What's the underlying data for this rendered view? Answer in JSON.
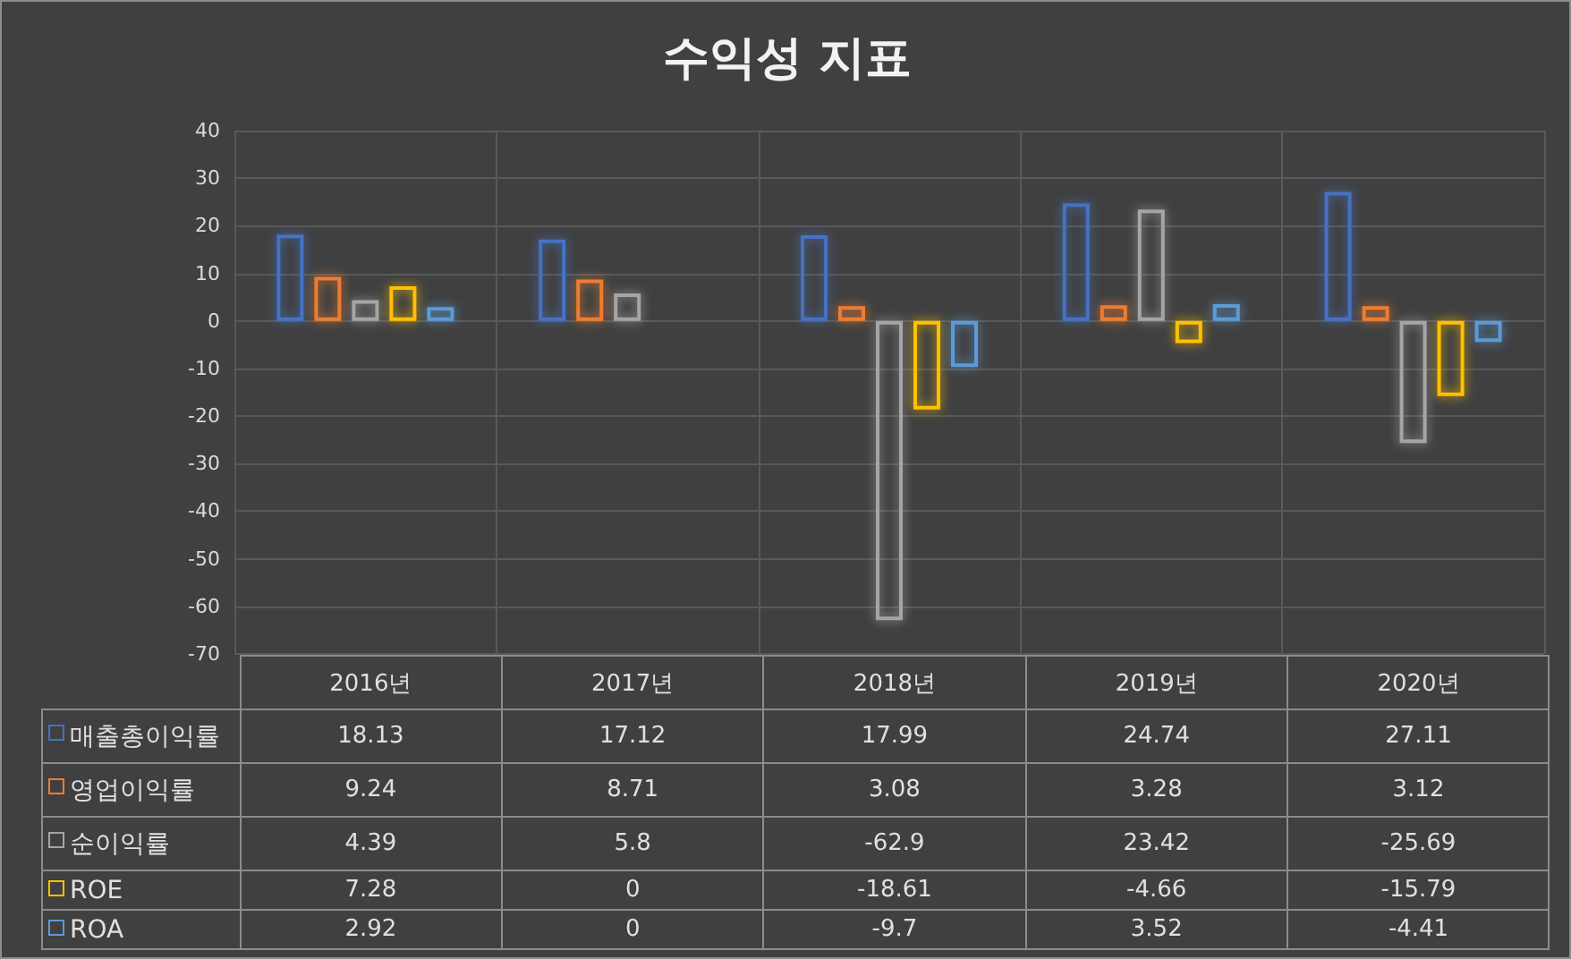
{
  "chart_data": {
    "type": "bar",
    "title": "수익성 지표",
    "categories": [
      "2016년",
      "2017년",
      "2018년",
      "2019년",
      "2020년"
    ],
    "series": [
      {
        "name": "매출총이익률",
        "color": "#4472c4",
        "values": [
          18.13,
          17.12,
          17.99,
          24.74,
          27.11
        ]
      },
      {
        "name": "영업이익률",
        "color": "#ed7d31",
        "values": [
          9.24,
          8.71,
          3.08,
          3.28,
          3.12
        ]
      },
      {
        "name": "순이익률",
        "color": "#a5a5a5",
        "values": [
          4.39,
          5.8,
          -62.9,
          23.42,
          -25.69
        ]
      },
      {
        "name": "ROE",
        "color": "#ffc000",
        "values": [
          7.28,
          0,
          -18.61,
          -4.66,
          -15.79
        ]
      },
      {
        "name": "ROA",
        "color": "#5b9bd5",
        "values": [
          2.92,
          0,
          -9.7,
          3.52,
          -4.41
        ]
      }
    ],
    "ylim": [
      -70,
      40
    ],
    "yticks": [
      -70,
      -60,
      -50,
      -40,
      -30,
      -20,
      -10,
      0,
      10,
      20,
      30,
      40
    ],
    "grid": true,
    "legend": "bottom",
    "data_labels": true
  }
}
